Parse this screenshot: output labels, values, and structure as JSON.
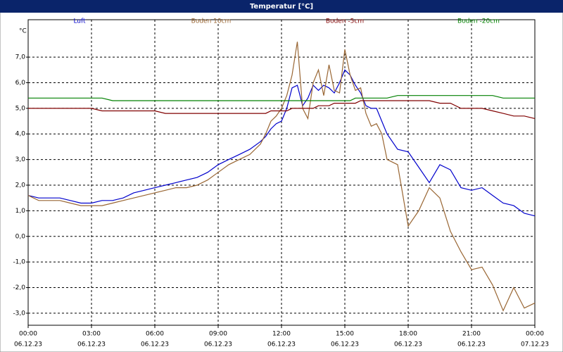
{
  "chart_data": {
    "type": "line",
    "title": "Temperatur [°C]",
    "y_label": "°C",
    "x": [
      0,
      0.5,
      1,
      1.5,
      2,
      2.5,
      3,
      3.5,
      4,
      4.5,
      5,
      5.5,
      6,
      6.5,
      7,
      7.5,
      8,
      8.5,
      9,
      9.5,
      10,
      10.5,
      11,
      11.25,
      11.5,
      11.75,
      12,
      12.25,
      12.5,
      12.75,
      13,
      13.25,
      13.5,
      13.75,
      14,
      14.25,
      14.5,
      14.75,
      15,
      15.25,
      15.5,
      15.75,
      16,
      16.25,
      16.5,
      16.75,
      17,
      17.5,
      18,
      18.5,
      19,
      19.5,
      20,
      20.5,
      21,
      21.5,
      22,
      22.5,
      23,
      23.5,
      24
    ],
    "series": [
      {
        "name": "Luft",
        "color": "#0000cc",
        "values": [
          1.6,
          1.5,
          1.5,
          1.5,
          1.4,
          1.3,
          1.3,
          1.4,
          1.4,
          1.5,
          1.7,
          1.8,
          1.9,
          2.0,
          2.1,
          2.2,
          2.3,
          2.5,
          2.8,
          3.0,
          3.2,
          3.4,
          3.7,
          3.9,
          4.2,
          4.4,
          4.5,
          5.0,
          5.8,
          5.9,
          5.1,
          5.4,
          5.9,
          5.7,
          5.9,
          5.8,
          5.6,
          6.0,
          6.5,
          6.3,
          5.9,
          5.6,
          5.1,
          5.0,
          5.0,
          4.5,
          4.0,
          3.4,
          3.3,
          2.7,
          2.1,
          2.8,
          2.6,
          1.9,
          1.8,
          1.9,
          1.6,
          1.3,
          1.2,
          0.9,
          0.8
        ]
      },
      {
        "name": "Boden 10cm",
        "color": "#996633",
        "values": [
          1.6,
          1.4,
          1.4,
          1.4,
          1.3,
          1.2,
          1.2,
          1.2,
          1.3,
          1.4,
          1.5,
          1.6,
          1.7,
          1.8,
          1.9,
          1.9,
          2.0,
          2.2,
          2.5,
          2.8,
          3.0,
          3.2,
          3.6,
          4.0,
          4.5,
          4.7,
          5.0,
          5.5,
          6.3,
          7.6,
          5.0,
          4.6,
          6.0,
          6.5,
          5.5,
          6.7,
          5.7,
          5.6,
          7.3,
          6.3,
          5.7,
          5.8,
          4.8,
          4.3,
          4.4,
          4.0,
          3.0,
          2.8,
          0.4,
          1.0,
          1.9,
          1.5,
          0.2,
          -0.6,
          -1.3,
          -1.2,
          -1.9,
          -2.9,
          -2.0,
          -2.8,
          -2.6
        ]
      },
      {
        "name": "Boden -5cm",
        "color": "#800000",
        "values": [
          5.0,
          5.0,
          5.0,
          5.0,
          5.0,
          5.0,
          5.0,
          4.9,
          4.9,
          4.9,
          4.9,
          4.9,
          4.9,
          4.8,
          4.8,
          4.8,
          4.8,
          4.8,
          4.8,
          4.8,
          4.8,
          4.8,
          4.8,
          4.8,
          4.9,
          4.9,
          4.9,
          4.9,
          5.0,
          5.0,
          5.0,
          5.0,
          5.0,
          5.1,
          5.1,
          5.1,
          5.2,
          5.2,
          5.2,
          5.2,
          5.2,
          5.3,
          5.3,
          5.3,
          5.3,
          5.3,
          5.3,
          5.3,
          5.3,
          5.3,
          5.3,
          5.2,
          5.2,
          5.0,
          5.0,
          5.0,
          4.9,
          4.8,
          4.7,
          4.7,
          4.6
        ]
      },
      {
        "name": "Boden -20cm",
        "color": "#008000",
        "values": [
          5.4,
          5.4,
          5.4,
          5.4,
          5.4,
          5.4,
          5.4,
          5.4,
          5.3,
          5.3,
          5.3,
          5.3,
          5.3,
          5.3,
          5.3,
          5.3,
          5.3,
          5.3,
          5.3,
          5.3,
          5.3,
          5.3,
          5.3,
          5.3,
          5.3,
          5.3,
          5.3,
          5.3,
          5.3,
          5.3,
          5.3,
          5.3,
          5.3,
          5.3,
          5.3,
          5.3,
          5.3,
          5.3,
          5.3,
          5.3,
          5.4,
          5.4,
          5.4,
          5.4,
          5.4,
          5.4,
          5.4,
          5.5,
          5.5,
          5.5,
          5.5,
          5.5,
          5.5,
          5.5,
          5.5,
          5.5,
          5.5,
          5.4,
          5.4,
          5.4,
          5.4
        ]
      }
    ],
    "xlim": [
      0,
      24
    ],
    "xticks": [
      {
        "value": 0,
        "label": "00:00",
        "date": "06.12.23"
      },
      {
        "value": 3,
        "label": "03:00",
        "date": "06.12.23"
      },
      {
        "value": 6,
        "label": "06:00",
        "date": "06.12.23"
      },
      {
        "value": 9,
        "label": "09:00",
        "date": "06.12.23"
      },
      {
        "value": 12,
        "label": "12:00",
        "date": "06.12.23"
      },
      {
        "value": 15,
        "label": "15:00",
        "date": "06.12.23"
      },
      {
        "value": 18,
        "label": "18:00",
        "date": "06.12.23"
      },
      {
        "value": 21,
        "label": "21:00",
        "date": "06.12.23"
      },
      {
        "value": 24,
        "label": "00:00",
        "date": "07.12.23"
      }
    ],
    "ylim": [
      -3.47,
      8.46
    ],
    "yticks": [
      {
        "value": -3,
        "label": "-3,0"
      },
      {
        "value": -2,
        "label": "-2,0"
      },
      {
        "value": -1,
        "label": "-1,0"
      },
      {
        "value": 0,
        "label": "0,0"
      },
      {
        "value": 1,
        "label": "1,0"
      },
      {
        "value": 2,
        "label": "2,0"
      },
      {
        "value": 3,
        "label": "3,0"
      },
      {
        "value": 4,
        "label": "4,0"
      },
      {
        "value": 5,
        "label": "5,0"
      },
      {
        "value": 6,
        "label": "6,0"
      },
      {
        "value": 7,
        "label": "7,0"
      }
    ],
    "grid": true
  }
}
